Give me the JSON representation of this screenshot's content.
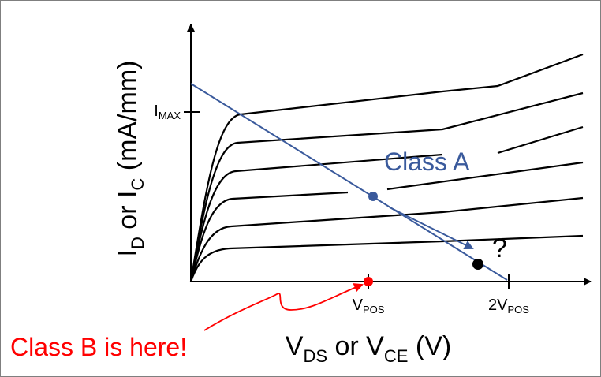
{
  "axes": {
    "y_label": {
      "main1": "I",
      "sub1": "D",
      "mid": " or I",
      "sub2": "C",
      "tail": "  (mA/mm)"
    },
    "x_label": {
      "main1": "V",
      "sub1": "DS",
      "mid": " or V",
      "sub2": "CE",
      "tail": " (V)"
    },
    "y_tick": {
      "main": "I",
      "sub": "MAX"
    },
    "x_tick_1": {
      "main": "V",
      "sub": "POS"
    },
    "x_tick_2": {
      "main": "2V",
      "sub": "POS"
    }
  },
  "annotations": {
    "class_a": "Class A",
    "class_b": "Class B is here!",
    "question": "?"
  },
  "colors": {
    "curves": "#000000",
    "load_line": "#3a5a9c",
    "class_a_text": "#3a5a9c",
    "class_b": "#ff0000",
    "dot_black": "#000000"
  }
}
